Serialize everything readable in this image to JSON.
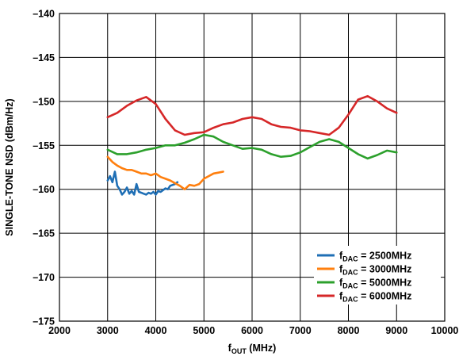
{
  "chart_data": {
    "type": "line",
    "title": "",
    "xlabel": {
      "main": "f",
      "sub": "OUT",
      "rest": " (MHz)"
    },
    "ylabel": "SINGLE-TONE NSD (dBm/Hz)",
    "xlim": [
      2000,
      10000
    ],
    "ylim": [
      -175,
      -140
    ],
    "xticks": [
      2000,
      3000,
      4000,
      5000,
      6000,
      7000,
      8000,
      9000,
      10000
    ],
    "yticks": [
      -140,
      -145,
      -150,
      -155,
      -160,
      -165,
      -170,
      -175
    ],
    "xtick_labels": [
      "2000",
      "3000",
      "4000",
      "5000",
      "6000",
      "7000",
      "8000",
      "9000",
      "10000"
    ],
    "ytick_labels": [
      "–140",
      "–145",
      "–150",
      "–155",
      "–160",
      "–165",
      "–170",
      "–175"
    ],
    "grid": true,
    "legend_position": "bottom-right",
    "series": [
      {
        "name": {
          "main": "f",
          "sub": "DAC",
          "rest": " = 2500MHz"
        },
        "color": "#1f6fb5",
        "x": [
          3000,
          3050,
          3100,
          3150,
          3200,
          3250,
          3300,
          3350,
          3400,
          3450,
          3500,
          3550,
          3600,
          3650,
          3700,
          3750,
          3800,
          3850,
          3900,
          3950,
          4000,
          4050,
          4100,
          4150,
          4200,
          4250,
          4300,
          4350,
          4400,
          4450
        ],
        "y": [
          -159.0,
          -158.5,
          -159.2,
          -158.0,
          -159.6,
          -160.0,
          -160.6,
          -160.3,
          -159.8,
          -160.5,
          -160.2,
          -160.6,
          -159.4,
          -160.3,
          -160.4,
          -160.5,
          -160.6,
          -160.4,
          -160.5,
          -160.3,
          -160.6,
          -160.2,
          -160.3,
          -160.1,
          -159.9,
          -160.0,
          -159.6,
          -159.5,
          -159.4,
          -159.2
        ]
      },
      {
        "name": {
          "main": "f",
          "sub": "DAC",
          "rest": " = 3000MHz"
        },
        "color": "#ff7f0e",
        "x": [
          3000,
          3100,
          3200,
          3300,
          3400,
          3500,
          3600,
          3700,
          3800,
          3900,
          4000,
          4100,
          4200,
          4300,
          4400,
          4500,
          4600,
          4700,
          4800,
          4900,
          5000,
          5100,
          5200,
          5300,
          5400
        ],
        "y": [
          -156.3,
          -156.9,
          -157.3,
          -157.6,
          -157.8,
          -157.8,
          -158.0,
          -158.2,
          -158.2,
          -158.4,
          -158.2,
          -158.6,
          -158.8,
          -159.0,
          -159.3,
          -159.6,
          -160.0,
          -159.5,
          -159.6,
          -159.4,
          -158.8,
          -158.5,
          -158.2,
          -158.1,
          -158.0
        ]
      },
      {
        "name": {
          "main": "f",
          "sub": "DAC",
          "rest": " = 5000MHz"
        },
        "color": "#2ca02c",
        "x": [
          3000,
          3200,
          3400,
          3600,
          3800,
          4000,
          4200,
          4400,
          4600,
          4800,
          5000,
          5200,
          5400,
          5600,
          5800,
          6000,
          6200,
          6400,
          6600,
          6800,
          7000,
          7200,
          7400,
          7600,
          7800,
          8000,
          8200,
          8400,
          8600,
          8800,
          9000
        ],
        "y": [
          -155.5,
          -156.0,
          -156.0,
          -155.8,
          -155.5,
          -155.3,
          -155.0,
          -155.0,
          -154.7,
          -154.3,
          -153.8,
          -154.0,
          -154.6,
          -155.0,
          -155.4,
          -155.3,
          -155.5,
          -156.0,
          -156.3,
          -156.2,
          -155.8,
          -155.2,
          -154.6,
          -154.3,
          -154.6,
          -155.3,
          -156.0,
          -156.5,
          -156.1,
          -155.6,
          -155.8
        ]
      },
      {
        "name": {
          "main": "f",
          "sub": "DAC",
          "rest": " = 6000MHz"
        },
        "color": "#d62728",
        "x": [
          3000,
          3200,
          3400,
          3600,
          3800,
          4000,
          4200,
          4400,
          4600,
          4800,
          5000,
          5200,
          5400,
          5600,
          5800,
          6000,
          6200,
          6400,
          6600,
          6800,
          7000,
          7200,
          7400,
          7600,
          7800,
          8000,
          8200,
          8400,
          8600,
          8800,
          9000
        ],
        "y": [
          -151.8,
          -151.3,
          -150.5,
          -149.9,
          -149.5,
          -150.3,
          -152.0,
          -153.3,
          -153.8,
          -153.6,
          -153.5,
          -153.0,
          -152.6,
          -152.4,
          -152.0,
          -151.8,
          -152.0,
          -152.6,
          -152.9,
          -153.0,
          -153.3,
          -153.4,
          -153.6,
          -153.8,
          -153.0,
          -151.5,
          -149.8,
          -149.4,
          -150.0,
          -150.8,
          -151.3
        ]
      }
    ]
  }
}
